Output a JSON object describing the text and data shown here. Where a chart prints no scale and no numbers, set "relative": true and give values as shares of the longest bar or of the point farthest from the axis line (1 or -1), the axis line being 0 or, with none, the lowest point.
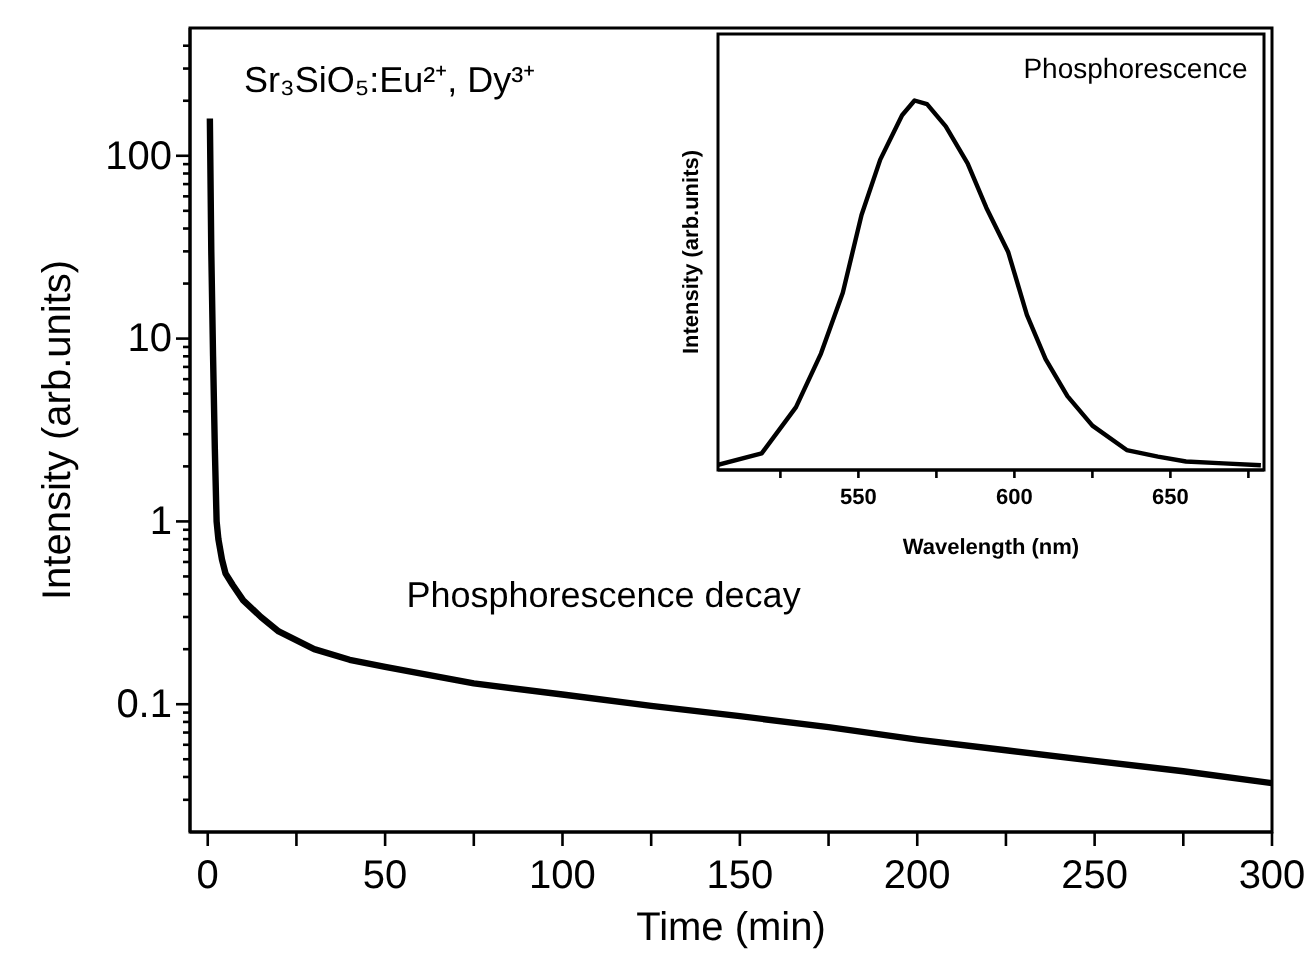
{
  "chart_data": [
    {
      "type": "line",
      "xlabel": "Time (min)",
      "ylabel": "Intensity (arb.units)",
      "log": "y",
      "xlim": [
        -5,
        300
      ],
      "ylim": [
        0.02,
        500
      ],
      "xticks": [
        0,
        {
          "value": 25,
          "label": null
        },
        50,
        {
          "value": 75,
          "label": null
        },
        100,
        {
          "value": 125,
          "label": null
        },
        150,
        {
          "value": 175,
          "label": null
        },
        200,
        {
          "value": 225,
          "label": null
        },
        250,
        {
          "value": 275,
          "label": null
        },
        300
      ],
      "yticks": [
        {
          "value": 0.03,
          "label": null
        },
        {
          "value": 0.04,
          "label": null
        },
        {
          "value": 0.05,
          "label": null
        },
        {
          "value": 0.06,
          "label": null
        },
        {
          "value": 0.07,
          "label": null
        },
        {
          "value": 0.08,
          "label": null
        },
        {
          "value": 0.09,
          "label": null
        },
        0.1,
        {
          "value": 0.2,
          "label": null
        },
        {
          "value": 0.3,
          "label": null
        },
        {
          "value": 0.4,
          "label": null
        },
        {
          "value": 0.5,
          "label": null
        },
        {
          "value": 0.6,
          "label": null
        },
        {
          "value": 0.7,
          "label": null
        },
        {
          "value": 0.8,
          "label": null
        },
        {
          "value": 0.9,
          "label": null
        },
        1,
        {
          "value": 2,
          "label": null
        },
        {
          "value": 3,
          "label": null
        },
        {
          "value": 4,
          "label": null
        },
        {
          "value": 5,
          "label": null
        },
        {
          "value": 6,
          "label": null
        },
        {
          "value": 7,
          "label": null
        },
        {
          "value": 8,
          "label": null
        },
        {
          "value": 9,
          "label": null
        },
        10,
        {
          "value": 20,
          "label": null
        },
        {
          "value": 30,
          "label": null
        },
        {
          "value": 40,
          "label": null
        },
        {
          "value": 50,
          "label": null
        },
        {
          "value": 60,
          "label": null
        },
        {
          "value": 70,
          "label": null
        },
        {
          "value": 80,
          "label": null
        },
        {
          "value": 90,
          "label": null
        },
        100,
        {
          "value": 200,
          "label": null
        },
        {
          "value": 300,
          "label": null
        },
        {
          "value": 400,
          "label": null
        }
      ],
      "annotations": [
        "Sr₃SiO₅:Eu²⁺, Dy³⁺",
        "Phosphorescence decay"
      ],
      "series": [
        {
          "color": "#000000",
          "x": [
            0.6,
            1,
            1.5,
            2,
            2.5,
            3,
            4,
            5,
            7,
            10,
            15,
            20,
            30,
            40,
            50,
            75,
            100,
            125,
            150,
            175,
            200,
            225,
            250,
            275,
            300
          ],
          "values": [
            160,
            30,
            8,
            2.5,
            1,
            0.8,
            0.62,
            0.52,
            0.45,
            0.37,
            0.3,
            0.25,
            0.2,
            0.175,
            0.16,
            0.13,
            0.113,
            0.098,
            0.086,
            0.075,
            0.064,
            0.056,
            0.049,
            0.043,
            0.037
          ]
        }
      ]
    },
    {
      "type": "line",
      "xlabel": "Wavelength (nm)",
      "ylabel": "Intensity (arb.units)",
      "relative": true,
      "tick_labels": "x",
      "xlim": [
        505,
        680
      ],
      "xticks": [
        {
          "value": 525,
          "label": null
        },
        550,
        {
          "value": 575,
          "label": null
        },
        600,
        {
          "value": 625,
          "label": null
        },
        650,
        {
          "value": 675,
          "label": null
        }
      ],
      "annotations": [
        "Phosphorescence"
      ],
      "series": [
        {
          "color": "#000000",
          "x": [
            505,
            519,
            530,
            538,
            545,
            551,
            557,
            564,
            568,
            572,
            578,
            585,
            591,
            598,
            604,
            610,
            617,
            625,
            636,
            646,
            655,
            667,
            679
          ],
          "values": [
            0.014,
            0.045,
            0.17,
            0.315,
            0.48,
            0.69,
            0.84,
            0.96,
            1,
            0.99,
            0.93,
            0.83,
            0.71,
            0.59,
            0.42,
            0.3,
            0.2,
            0.12,
            0.054,
            0.036,
            0.023,
            0.018,
            0.013
          ]
        }
      ]
    }
  ]
}
